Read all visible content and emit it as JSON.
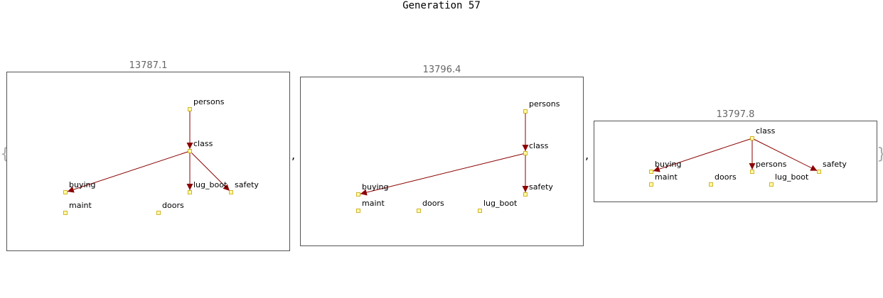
{
  "title": "Generation 57",
  "colors": {
    "edge": "#8b0000",
    "node_fill": "#ffffa8",
    "node_stroke": "#c8a000",
    "frame": "#555555"
  },
  "open_bracket": "{",
  "close_bracket": "}",
  "separator": ",",
  "graphs": [
    {
      "score": "13787.1",
      "nodes": [
        "persons",
        "class",
        "buying",
        "lug_boot",
        "safety",
        "maint",
        "doors"
      ],
      "edges": [
        [
          "persons",
          "class"
        ],
        [
          "class",
          "buying"
        ],
        [
          "class",
          "lug_boot"
        ],
        [
          "class",
          "safety"
        ]
      ]
    },
    {
      "score": "13796.4",
      "nodes": [
        "persons",
        "class",
        "buying",
        "safety",
        "maint",
        "doors",
        "lug_boot"
      ],
      "edges": [
        [
          "persons",
          "class"
        ],
        [
          "class",
          "buying"
        ],
        [
          "class",
          "safety"
        ]
      ]
    },
    {
      "score": "13797.8",
      "nodes": [
        "class",
        "buying",
        "persons",
        "safety",
        "maint",
        "doors",
        "lug_boot"
      ],
      "edges": [
        [
          "class",
          "buying"
        ],
        [
          "class",
          "persons"
        ],
        [
          "class",
          "safety"
        ]
      ]
    }
  ]
}
